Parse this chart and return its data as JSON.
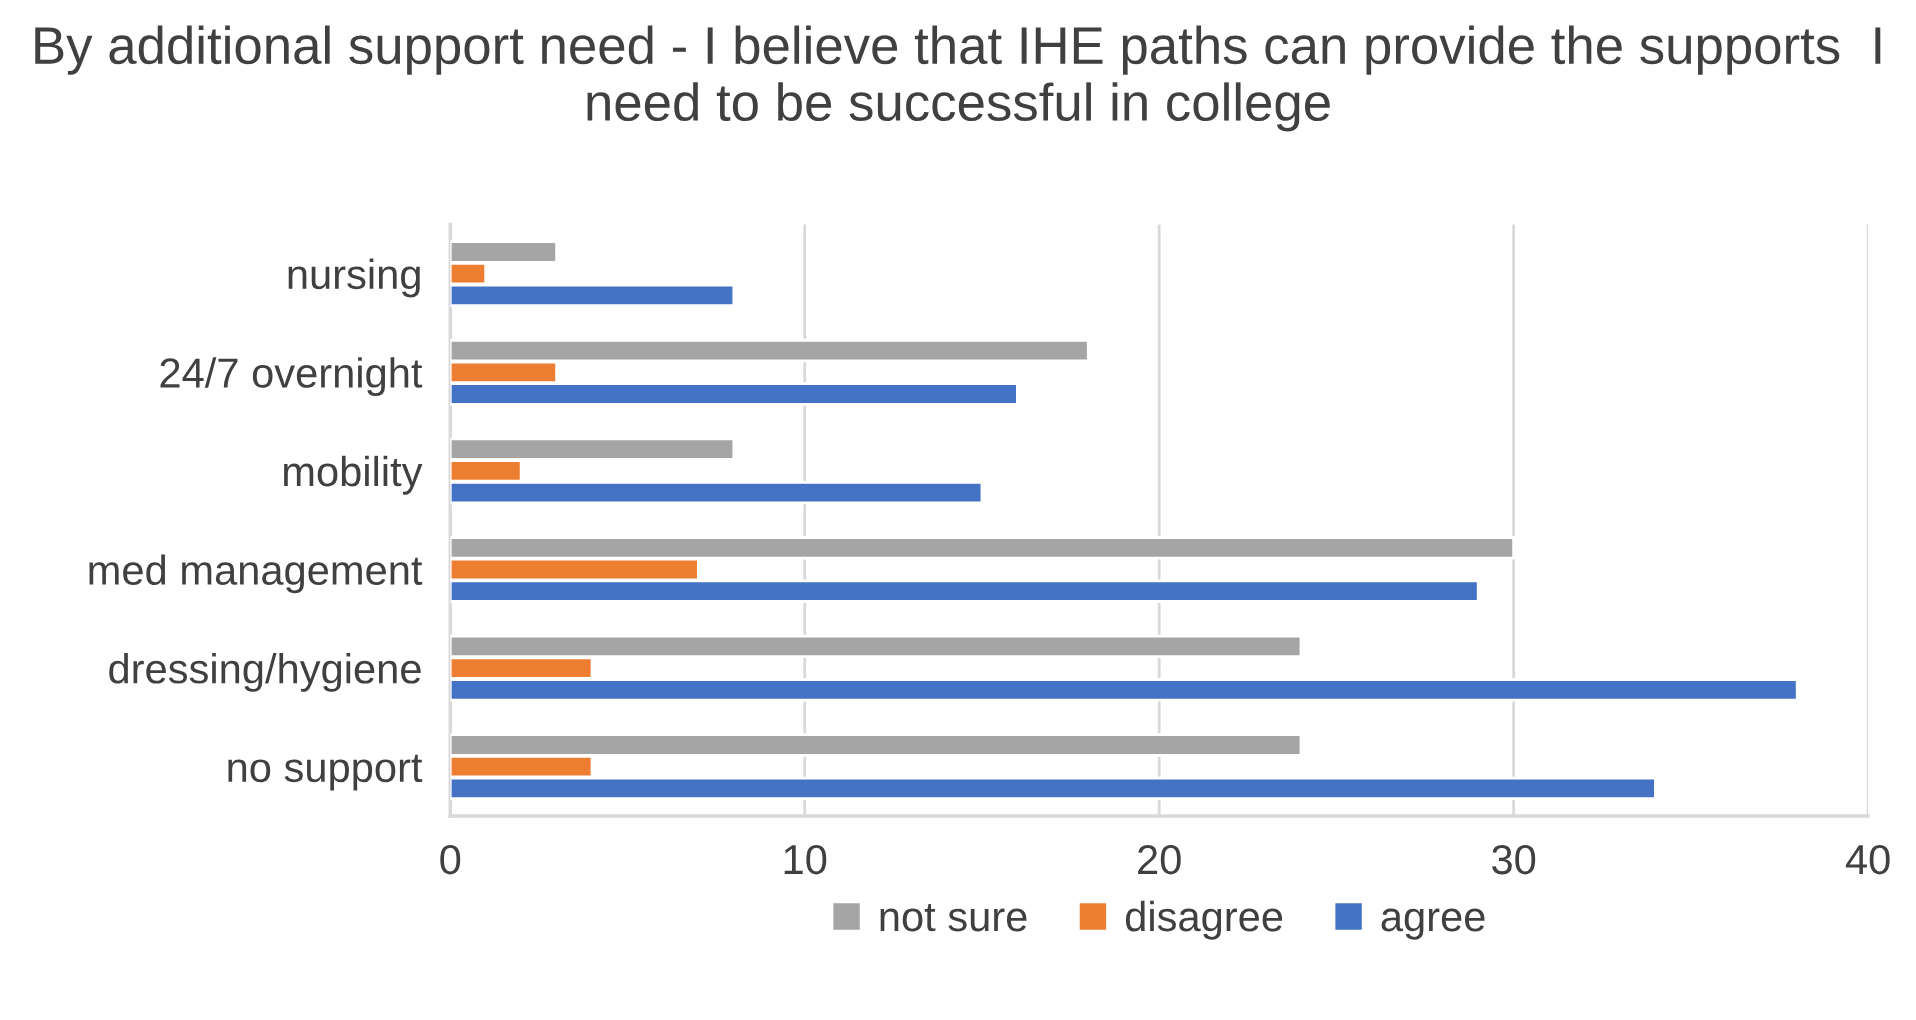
{
  "chart_data": {
    "type": "bar",
    "orientation": "horizontal",
    "title": "By additional support need - I believe that IHE paths can provide the supports  I need to be successful in college",
    "categories": [
      "nursing",
      "24/7 overnight",
      "mobility",
      "med management",
      "dressing/hygiene",
      "no support"
    ],
    "series": [
      {
        "name": "not sure",
        "color": "#a5a5a5",
        "values": [
          3,
          18,
          8,
          30,
          24,
          24
        ]
      },
      {
        "name": "disagree",
        "color": "#ed7d31",
        "values": [
          1,
          3,
          2,
          7,
          4,
          4
        ]
      },
      {
        "name": "agree",
        "color": "#4472c4",
        "values": [
          8,
          16,
          15,
          29,
          38,
          34
        ]
      }
    ],
    "xlim": [
      0,
      40
    ],
    "xticks": [
      0,
      10,
      20,
      30,
      40
    ],
    "grid": "x",
    "legend": "bottom"
  }
}
